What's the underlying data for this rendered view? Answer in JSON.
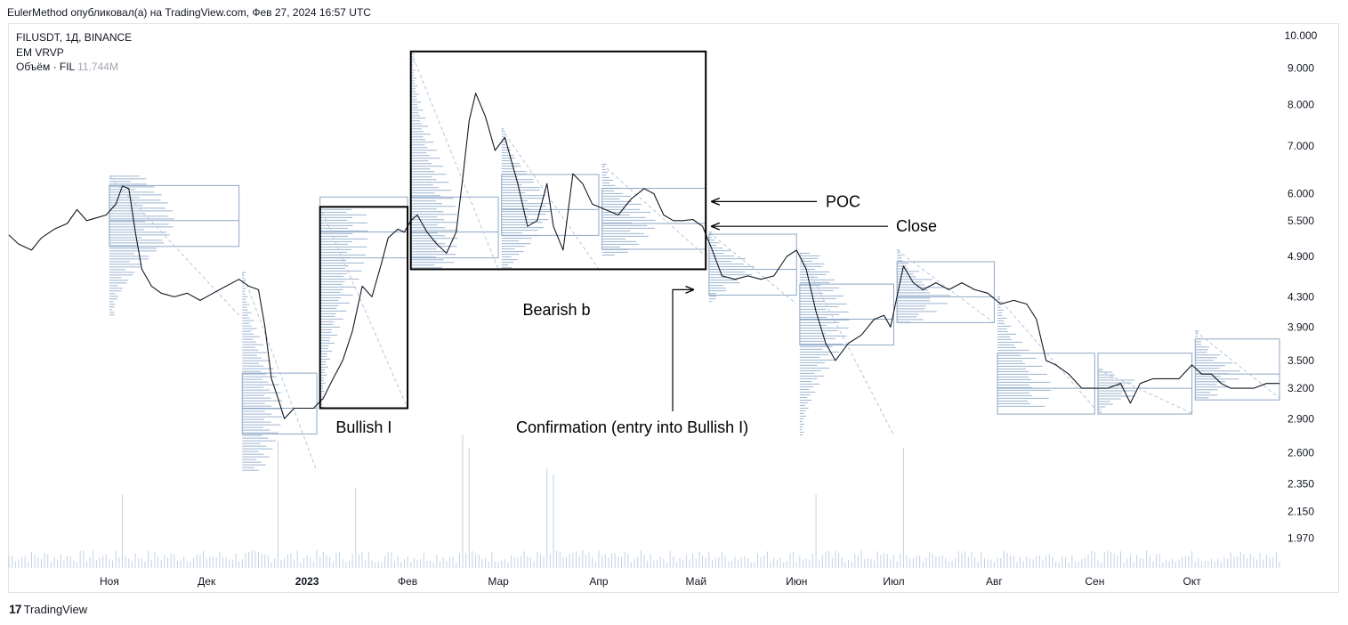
{
  "header": {
    "publisher": "EulerMethod опубликовал(а) на TradingView.com, Фев 27, 2024 16:57 UTC"
  },
  "legend": {
    "symbol": "FILUSDT, 1Д, BINANCE",
    "indicator": "EM VRVP",
    "volume_label": "Объём · FIL",
    "volume_value": "11.744M"
  },
  "footer": {
    "logo_text": "17",
    "brand": "TradingView"
  },
  "colors": {
    "price_line": "#131722",
    "profile": "#9cb4d0",
    "box_line": "#8ea7c4",
    "vol_bar": "#c4d2e3",
    "annotation": "#000000"
  },
  "annotations": {
    "poc": "POC",
    "close": "Close",
    "bullish_box": "Bullish I",
    "bearish_box": "Bearish b",
    "confirmation": "Confirmation (entry into Bullish I)"
  },
  "chart_data": {
    "type": "line",
    "title": "FILUSDT, 1Д, BINANCE",
    "y_scale": "log",
    "ylim": [
      1.78,
      10.35
    ],
    "y_ticks": [
      "10.000",
      "9.000",
      "8.000",
      "7.000",
      "6.000",
      "5.500",
      "4.900",
      "4.300",
      "3.900",
      "3.500",
      "3.200",
      "2.900",
      "2.600",
      "2.350",
      "2.150",
      "1.970"
    ],
    "x_ticks": [
      "Ноя",
      "Дек",
      "2023",
      "Фев",
      "Мар",
      "Апр",
      "Май",
      "Июн",
      "Июл",
      "Авг",
      "Сен",
      "Окт"
    ],
    "x_tick_dates": [
      "2022-11-01",
      "2022-12-01",
      "2023-01-01",
      "2023-02-01",
      "2023-03-01",
      "2023-04-01",
      "2023-05-01",
      "2023-06-01",
      "2023-07-01",
      "2023-08-01",
      "2023-09-01",
      "2023-10-01"
    ],
    "x_range": [
      "2022-10-01",
      "2023-10-28"
    ],
    "series": [
      {
        "values": [
          [
            "2022-10-01",
            5.25
          ],
          [
            "2022-10-04",
            5.1
          ],
          [
            "2022-10-08",
            5.0
          ],
          [
            "2022-10-11",
            5.2
          ],
          [
            "2022-10-15",
            5.35
          ],
          [
            "2022-10-19",
            5.45
          ],
          [
            "2022-10-22",
            5.7
          ],
          [
            "2022-10-25",
            5.5
          ],
          [
            "2022-10-28",
            5.55
          ],
          [
            "2022-10-31",
            5.6
          ],
          [
            "2022-11-03",
            5.8
          ],
          [
            "2022-11-05",
            6.15
          ],
          [
            "2022-11-07",
            6.1
          ],
          [
            "2022-11-09",
            5.3
          ],
          [
            "2022-11-11",
            4.7
          ],
          [
            "2022-11-14",
            4.45
          ],
          [
            "2022-11-17",
            4.35
          ],
          [
            "2022-11-21",
            4.3
          ],
          [
            "2022-11-25",
            4.35
          ],
          [
            "2022-11-29",
            4.25
          ],
          [
            "2022-12-03",
            4.35
          ],
          [
            "2022-12-07",
            4.45
          ],
          [
            "2022-12-11",
            4.55
          ],
          [
            "2022-12-14",
            4.45
          ],
          [
            "2022-12-17",
            4.4
          ],
          [
            "2022-12-19",
            3.9
          ],
          [
            "2022-12-21",
            3.3
          ],
          [
            "2022-12-23",
            3.1
          ],
          [
            "2022-12-25",
            2.9
          ],
          [
            "2022-12-28",
            3.0
          ],
          [
            "2022-12-31",
            3.0
          ],
          [
            "2023-01-03",
            3.0
          ],
          [
            "2023-01-06",
            3.1
          ],
          [
            "2023-01-09",
            3.3
          ],
          [
            "2023-01-12",
            3.5
          ],
          [
            "2023-01-15",
            3.85
          ],
          [
            "2023-01-18",
            4.45
          ],
          [
            "2023-01-21",
            4.3
          ],
          [
            "2023-01-24",
            4.8
          ],
          [
            "2023-01-26",
            5.2
          ],
          [
            "2023-01-29",
            5.35
          ],
          [
            "2023-01-31",
            5.3
          ],
          [
            "2023-02-02",
            5.5
          ],
          [
            "2023-02-04",
            5.6
          ],
          [
            "2023-02-07",
            5.3
          ],
          [
            "2023-02-10",
            5.1
          ],
          [
            "2023-02-13",
            4.95
          ],
          [
            "2023-02-16",
            5.3
          ],
          [
            "2023-02-18",
            6.3
          ],
          [
            "2023-02-20",
            7.6
          ],
          [
            "2023-02-22",
            8.3
          ],
          [
            "2023-02-25",
            7.7
          ],
          [
            "2023-02-28",
            6.9
          ],
          [
            "2023-03-03",
            7.2
          ],
          [
            "2023-03-07",
            6.2
          ],
          [
            "2023-03-10",
            5.4
          ],
          [
            "2023-03-13",
            5.5
          ],
          [
            "2023-03-16",
            6.2
          ],
          [
            "2023-03-18",
            5.4
          ],
          [
            "2023-03-21",
            5.0
          ],
          [
            "2023-03-24",
            6.4
          ],
          [
            "2023-03-27",
            6.2
          ],
          [
            "2023-03-30",
            5.8
          ],
          [
            "2023-04-03",
            5.7
          ],
          [
            "2023-04-07",
            5.6
          ],
          [
            "2023-04-11",
            5.9
          ],
          [
            "2023-04-15",
            6.1
          ],
          [
            "2023-04-18",
            6.0
          ],
          [
            "2023-04-21",
            5.6
          ],
          [
            "2023-04-24",
            5.5
          ],
          [
            "2023-04-27",
            5.5
          ],
          [
            "2023-04-30",
            5.52
          ],
          [
            "2023-05-03",
            5.4
          ],
          [
            "2023-05-06",
            5.0
          ],
          [
            "2023-05-09",
            4.6
          ],
          [
            "2023-05-13",
            4.55
          ],
          [
            "2023-05-17",
            4.6
          ],
          [
            "2023-05-21",
            4.55
          ],
          [
            "2023-05-25",
            4.6
          ],
          [
            "2023-05-29",
            4.9
          ],
          [
            "2023-06-01",
            5.0
          ],
          [
            "2023-06-04",
            4.7
          ],
          [
            "2023-06-07",
            4.1
          ],
          [
            "2023-06-10",
            3.7
          ],
          [
            "2023-06-13",
            3.5
          ],
          [
            "2023-06-17",
            3.7
          ],
          [
            "2023-06-21",
            3.8
          ],
          [
            "2023-06-25",
            4.0
          ],
          [
            "2023-06-28",
            4.05
          ],
          [
            "2023-06-30",
            3.9
          ],
          [
            "2023-07-02",
            4.3
          ],
          [
            "2023-07-04",
            4.75
          ],
          [
            "2023-07-07",
            4.5
          ],
          [
            "2023-07-10",
            4.4
          ],
          [
            "2023-07-14",
            4.5
          ],
          [
            "2023-07-18",
            4.4
          ],
          [
            "2023-07-22",
            4.5
          ],
          [
            "2023-07-26",
            4.4
          ],
          [
            "2023-07-30",
            4.35
          ],
          [
            "2023-08-03",
            4.2
          ],
          [
            "2023-08-07",
            4.25
          ],
          [
            "2023-08-11",
            4.2
          ],
          [
            "2023-08-14",
            4.0
          ],
          [
            "2023-08-17",
            3.5
          ],
          [
            "2023-08-20",
            3.45
          ],
          [
            "2023-08-24",
            3.35
          ],
          [
            "2023-08-28",
            3.2
          ],
          [
            "2023-09-01",
            3.2
          ],
          [
            "2023-09-05",
            3.2
          ],
          [
            "2023-09-09",
            3.25
          ],
          [
            "2023-09-12",
            3.05
          ],
          [
            "2023-09-15",
            3.25
          ],
          [
            "2023-09-19",
            3.3
          ],
          [
            "2023-09-23",
            3.3
          ],
          [
            "2023-09-27",
            3.3
          ],
          [
            "2023-10-01",
            3.45
          ],
          [
            "2023-10-04",
            3.35
          ],
          [
            "2023-10-07",
            3.35
          ],
          [
            "2023-10-10",
            3.25
          ],
          [
            "2023-10-13",
            3.2
          ],
          [
            "2023-10-17",
            3.2
          ],
          [
            "2023-10-20",
            3.2
          ],
          [
            "2023-10-24",
            3.25
          ],
          [
            "2023-10-28",
            3.25
          ]
        ]
      }
    ],
    "volume_profiles": [
      {
        "from": "2022-11-01",
        "to": "2022-12-11",
        "high": 6.35,
        "low": 4.05,
        "poc": 5.5
      },
      {
        "from": "2022-12-12",
        "to": "2023-01-04",
        "high": 4.65,
        "low": 2.45,
        "poc": 3.0
      },
      {
        "from": "2023-01-05",
        "to": "2023-02-01",
        "high": 5.75,
        "low": 3.0,
        "poc": 5.3
      },
      {
        "from": "2023-02-02",
        "to": "2023-03-01",
        "high": 9.5,
        "low": 4.7,
        "poc": 5.3
      },
      {
        "from": "2023-03-02",
        "to": "2023-04-01",
        "high": 7.4,
        "low": 4.7,
        "poc": 5.7
      },
      {
        "from": "2023-04-02",
        "to": "2023-05-04",
        "high": 6.6,
        "low": 4.9,
        "poc": 5.45
      },
      {
        "from": "2023-05-05",
        "to": "2023-06-01",
        "high": 5.3,
        "low": 4.2,
        "poc": 4.7
      },
      {
        "from": "2023-06-02",
        "to": "2023-07-01",
        "high": 4.95,
        "low": 2.75,
        "poc": 4.0
      },
      {
        "from": "2023-07-02",
        "to": "2023-08-01",
        "high": 5.0,
        "low": 3.95,
        "poc": 4.3
      },
      {
        "from": "2023-08-02",
        "to": "2023-09-01",
        "high": 4.3,
        "low": 3.0,
        "poc": 3.2
      },
      {
        "from": "2023-09-02",
        "to": "2023-10-01",
        "high": 3.4,
        "low": 2.95,
        "poc": 3.2
      },
      {
        "from": "2023-10-02",
        "to": "2023-10-28",
        "high": 3.85,
        "low": 3.1,
        "poc": 3.35
      }
    ],
    "annotation_boxes": [
      {
        "label": "Bullish I",
        "from": "2023-01-05",
        "to": "2023-02-01",
        "high": 5.75,
        "low": 3.0
      },
      {
        "label": "Bearish b",
        "from": "2023-02-02",
        "to": "2023-05-04",
        "high": 9.5,
        "low": 4.7
      }
    ],
    "volume_spikes": [
      [
        "2022-11-05",
        0.55
      ],
      [
        "2022-12-23",
        0.95
      ],
      [
        "2023-01-16",
        0.6
      ],
      [
        "2023-02-18",
        1.0
      ],
      [
        "2023-02-20",
        0.9
      ],
      [
        "2023-03-16",
        0.75
      ],
      [
        "2023-03-18",
        0.7
      ],
      [
        "2023-07-04",
        0.9
      ],
      [
        "2023-06-07",
        0.55
      ]
    ]
  }
}
